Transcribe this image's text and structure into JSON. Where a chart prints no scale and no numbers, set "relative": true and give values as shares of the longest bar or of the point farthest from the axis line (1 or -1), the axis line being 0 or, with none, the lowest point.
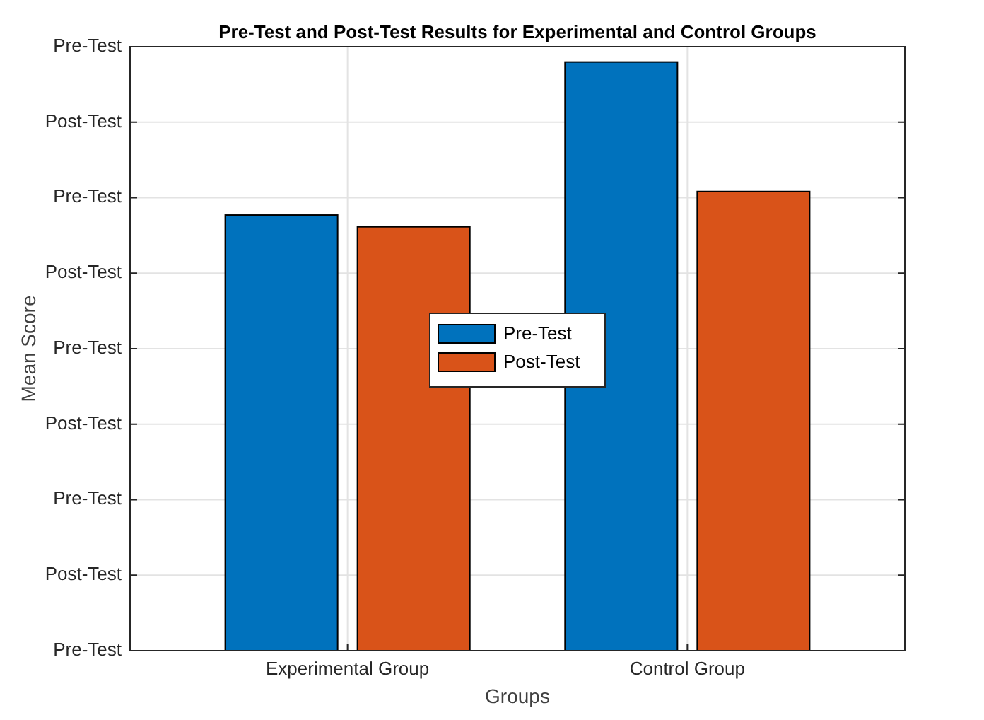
{
  "chart_data": {
    "type": "bar",
    "title": "Pre-Test and Post-Test Results for Experimental and Control Groups",
    "xlabel": "Groups",
    "ylabel": "Mean Score",
    "categories": [
      "Experimental Group",
      "Control Group"
    ],
    "series": [
      {
        "name": "Pre-Test",
        "color": "#0072bd",
        "values": [
          0.74,
          1
        ]
      },
      {
        "name": "Post-Test",
        "color": "#d95319",
        "values": [
          0.72,
          0.78
        ]
      }
    ],
    "relative": true,
    "annotations": [
      "Pre-Test",
      "Post-Test",
      "Pre-Test",
      "Post-Test",
      "Pre-Test",
      "Post-Test",
      "Pre-Test",
      "Post-Test",
      "Pre-Test"
    ],
    "grid": true,
    "legend": "center"
  }
}
